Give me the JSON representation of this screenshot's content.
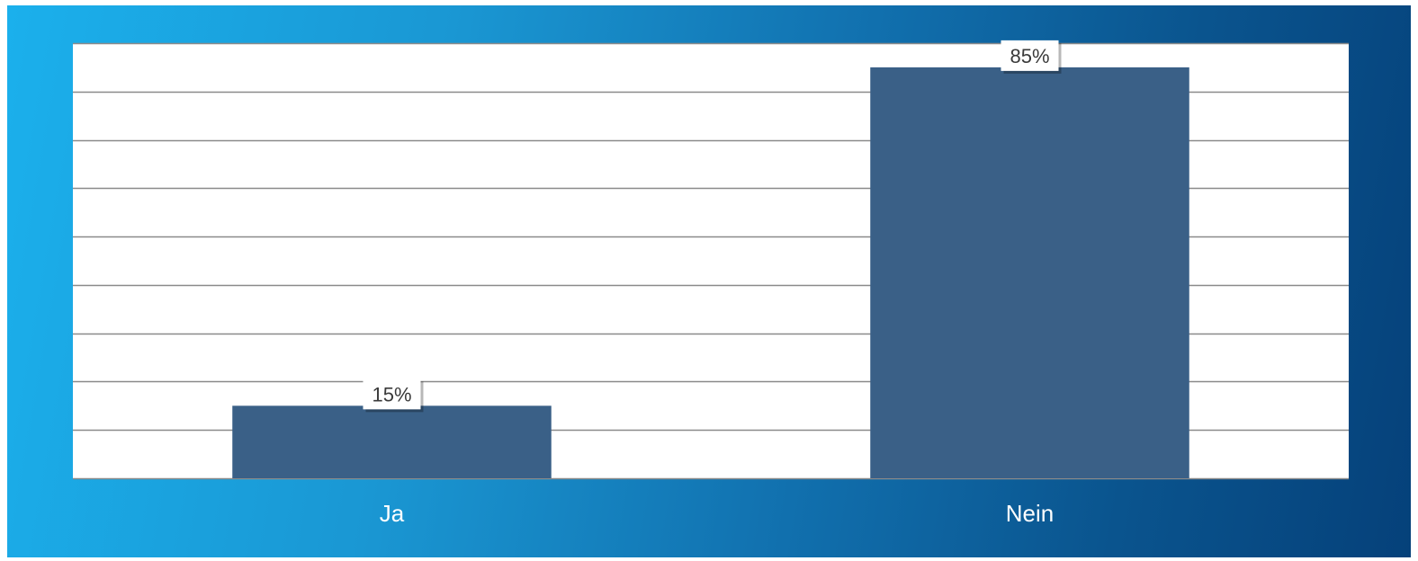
{
  "chart_data": {
    "type": "bar",
    "categories": [
      "Ja",
      "Nein"
    ],
    "values": [
      15,
      85
    ],
    "data_labels": [
      "15%",
      "85%"
    ],
    "ylim": [
      0,
      90
    ],
    "title": "",
    "xlabel": "",
    "ylabel": "",
    "grid": true,
    "legend": "none",
    "bar_color": "#3a6087",
    "gridline_color": "#8a8a8a"
  }
}
